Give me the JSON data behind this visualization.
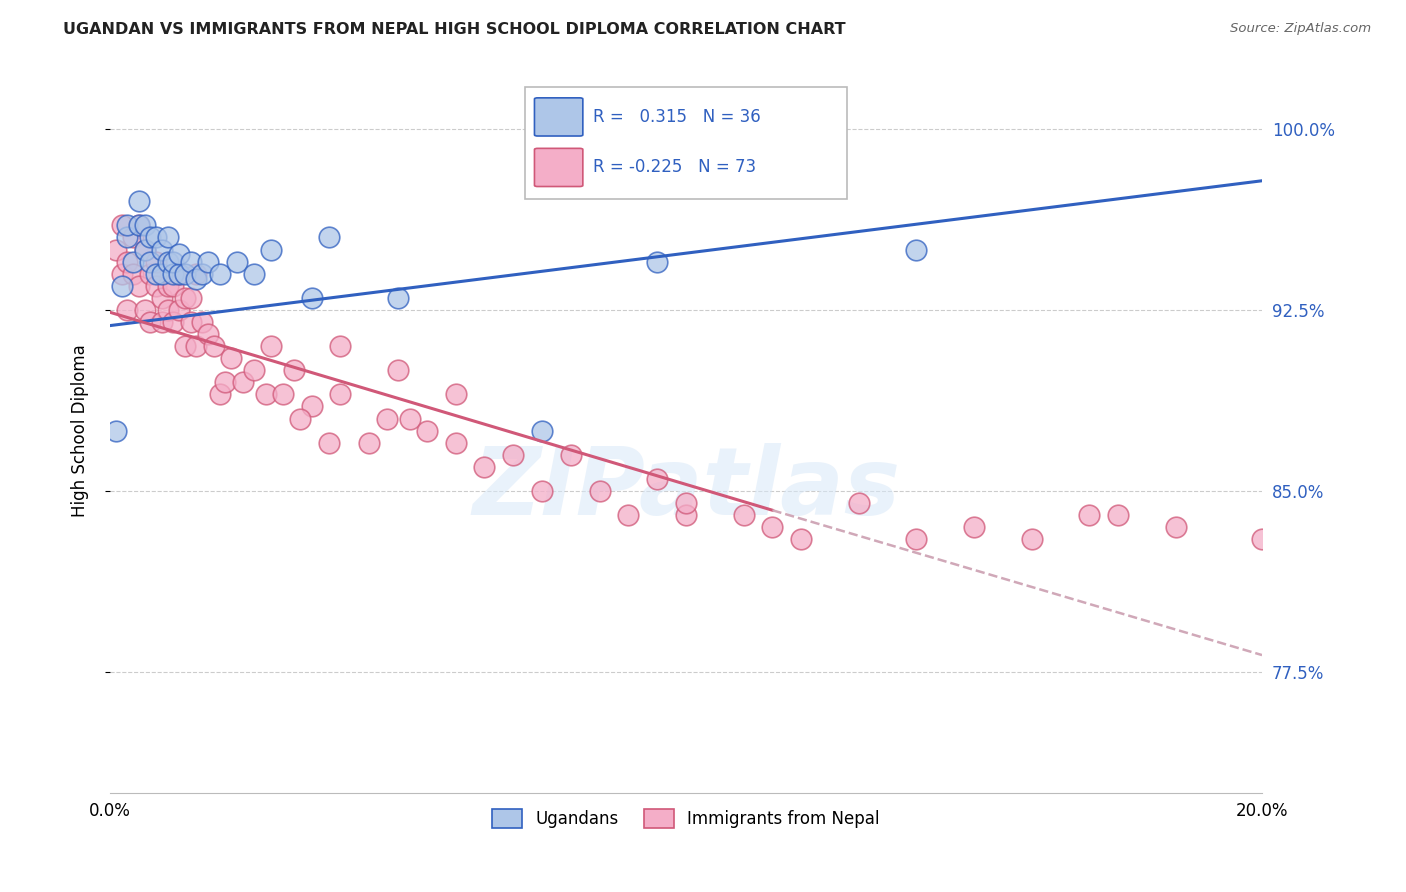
{
  "title": "UGANDAN VS IMMIGRANTS FROM NEPAL HIGH SCHOOL DIPLOMA CORRELATION CHART",
  "source": "Source: ZipAtlas.com",
  "ylabel": "High School Diploma",
  "ytick_labels": [
    "100.0%",
    "92.5%",
    "85.0%",
    "77.5%"
  ],
  "ytick_values": [
    1.0,
    0.925,
    0.85,
    0.775
  ],
  "xlim": [
    0.0,
    0.2
  ],
  "ylim": [
    0.725,
    1.025
  ],
  "legend_r1": "R =  0.315   N = 36",
  "legend_r2": "R = -0.225   N = 73",
  "ugandan_color": "#aec6e8",
  "nepal_color": "#f4aec8",
  "trend_ugandan_color": "#3060c0",
  "trend_nepal_color": "#d05878",
  "trend_nepal_dash_color": "#d0a8b8",
  "watermark_text": "ZIPatlas",
  "ugandan_trend": [
    0.0,
    0.9185,
    0.2,
    0.9785
  ],
  "nepal_trend_solid": [
    0.0,
    0.924,
    0.115,
    0.842
  ],
  "nepal_trend_dash": [
    0.115,
    0.842,
    0.2,
    0.782
  ],
  "ugandan_x": [
    0.001,
    0.002,
    0.003,
    0.003,
    0.004,
    0.005,
    0.005,
    0.006,
    0.006,
    0.007,
    0.007,
    0.008,
    0.008,
    0.009,
    0.009,
    0.01,
    0.01,
    0.011,
    0.011,
    0.012,
    0.012,
    0.013,
    0.014,
    0.015,
    0.016,
    0.017,
    0.019,
    0.022,
    0.025,
    0.028,
    0.035,
    0.038,
    0.05,
    0.075,
    0.095,
    0.14
  ],
  "ugandan_y": [
    0.875,
    0.935,
    0.955,
    0.96,
    0.945,
    0.96,
    0.97,
    0.95,
    0.96,
    0.945,
    0.955,
    0.94,
    0.955,
    0.94,
    0.95,
    0.945,
    0.955,
    0.94,
    0.945,
    0.94,
    0.948,
    0.94,
    0.945,
    0.938,
    0.94,
    0.945,
    0.94,
    0.945,
    0.94,
    0.95,
    0.93,
    0.955,
    0.93,
    0.875,
    0.945,
    0.95
  ],
  "nepal_x": [
    0.001,
    0.002,
    0.002,
    0.003,
    0.003,
    0.004,
    0.004,
    0.005,
    0.005,
    0.006,
    0.006,
    0.007,
    0.007,
    0.008,
    0.008,
    0.009,
    0.009,
    0.01,
    0.01,
    0.011,
    0.011,
    0.012,
    0.012,
    0.013,
    0.013,
    0.014,
    0.014,
    0.015,
    0.015,
    0.016,
    0.017,
    0.018,
    0.019,
    0.02,
    0.021,
    0.023,
    0.025,
    0.027,
    0.03,
    0.032,
    0.035,
    0.04,
    0.045,
    0.048,
    0.052,
    0.06,
    0.065,
    0.07,
    0.075,
    0.08,
    0.09,
    0.095,
    0.1,
    0.11,
    0.115,
    0.12,
    0.13,
    0.14,
    0.15,
    0.16,
    0.17,
    0.175,
    0.185,
    0.2,
    0.04,
    0.05,
    0.06,
    0.028,
    0.033,
    0.085,
    0.1,
    0.038,
    0.055
  ],
  "nepal_y": [
    0.95,
    0.96,
    0.94,
    0.945,
    0.925,
    0.955,
    0.94,
    0.96,
    0.935,
    0.95,
    0.925,
    0.94,
    0.92,
    0.945,
    0.935,
    0.93,
    0.92,
    0.935,
    0.925,
    0.935,
    0.92,
    0.94,
    0.925,
    0.93,
    0.91,
    0.93,
    0.92,
    0.94,
    0.91,
    0.92,
    0.915,
    0.91,
    0.89,
    0.895,
    0.905,
    0.895,
    0.9,
    0.89,
    0.89,
    0.9,
    0.885,
    0.89,
    0.87,
    0.88,
    0.88,
    0.87,
    0.86,
    0.865,
    0.85,
    0.865,
    0.84,
    0.855,
    0.84,
    0.84,
    0.835,
    0.83,
    0.845,
    0.83,
    0.835,
    0.83,
    0.84,
    0.84,
    0.835,
    0.83,
    0.91,
    0.9,
    0.89,
    0.91,
    0.88,
    0.85,
    0.845,
    0.87,
    0.875
  ]
}
